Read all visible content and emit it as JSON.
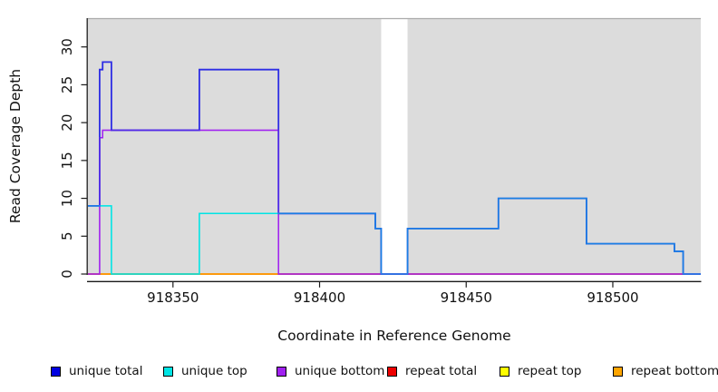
{
  "chart_data": {
    "type": "line",
    "subtype": "step-coverage",
    "title": "",
    "xlabel": "Coordinate in Reference Genome",
    "ylabel": "Read Coverage Depth",
    "xlim": [
      918321,
      918530
    ],
    "ylim": [
      0,
      33.8
    ],
    "x_ticks": [
      918350,
      918400,
      918450,
      918500
    ],
    "y_ticks": [
      0,
      5,
      10,
      15,
      20,
      25,
      30
    ],
    "grid": false,
    "legend_position": "bottom",
    "panel": {
      "background": "#DCDCDC",
      "top_border": "#ABABAB",
      "gap_fill": "#FFFFFF"
    },
    "gap_regions": [
      {
        "from": 918421,
        "to": 918430
      }
    ],
    "legend": [
      {
        "label": "unique total",
        "color": "#0000E0"
      },
      {
        "label": "unique top",
        "color": "#00E5E5"
      },
      {
        "label": "unique bottom",
        "color": "#A020F0"
      },
      {
        "label": "repeat total",
        "color": "#EE0000"
      },
      {
        "label": "repeat top",
        "color": "#FFFF00"
      },
      {
        "label": "repeat bottom",
        "color": "#FFA500"
      }
    ],
    "series": [
      {
        "name": "repeat top",
        "color": "#FFFF00",
        "steps": [
          {
            "from": 918321,
            "to": 918530,
            "value": 0
          }
        ]
      },
      {
        "name": "repeat total",
        "color": "#EE0000",
        "steps": [
          {
            "from": 918321,
            "to": 918530,
            "value": 0
          }
        ]
      },
      {
        "name": "repeat bottom",
        "color": "#FFA500",
        "steps": [
          {
            "from": 918321,
            "to": 918530,
            "value": 0
          }
        ]
      },
      {
        "name": "unique bottom",
        "color": "#A020F0",
        "steps": [
          {
            "from": 918321,
            "to": 918325,
            "value": 0
          },
          {
            "from": 918325,
            "to": 918326,
            "value": 18
          },
          {
            "from": 918326,
            "to": 918386,
            "value": 19
          },
          {
            "from": 918386,
            "to": 918530,
            "value": 0
          }
        ]
      },
      {
        "name": "unique top",
        "color": "#00E5E5",
        "steps": [
          {
            "from": 918321,
            "to": 918329,
            "value": 9
          },
          {
            "from": 918329,
            "to": 918359,
            "value": 0
          },
          {
            "from": 918359,
            "to": 918419,
            "value": 8
          },
          {
            "from": 918419,
            "to": 918421,
            "value": 6
          },
          {
            "from": 918421,
            "to": 918430,
            "value": 0
          },
          {
            "from": 918430,
            "to": 918461,
            "value": 6
          },
          {
            "from": 918461,
            "to": 918491,
            "value": 10
          },
          {
            "from": 918491,
            "to": 918521,
            "value": 4
          },
          {
            "from": 918521,
            "to": 918524,
            "value": 3
          },
          {
            "from": 918524,
            "to": 918530,
            "value": 0
          }
        ]
      },
      {
        "name": "unique total",
        "color": "#2E2EE4",
        "steps": [
          {
            "from": 918321,
            "to": 918325,
            "value": 9
          },
          {
            "from": 918325,
            "to": 918326,
            "value": 27
          },
          {
            "from": 918326,
            "to": 918329,
            "value": 28
          },
          {
            "from": 918329,
            "to": 918359,
            "value": 19
          },
          {
            "from": 918359,
            "to": 918386,
            "value": 27
          },
          {
            "from": 918386,
            "to": 918419,
            "value": 8
          },
          {
            "from": 918419,
            "to": 918421,
            "value": 6
          },
          {
            "from": 918421,
            "to": 918430,
            "value": 0
          },
          {
            "from": 918430,
            "to": 918461,
            "value": 6
          },
          {
            "from": 918461,
            "to": 918491,
            "value": 10
          },
          {
            "from": 918491,
            "to": 918521,
            "value": 4
          },
          {
            "from": 918521,
            "to": 918524,
            "value": 3
          },
          {
            "from": 918524,
            "to": 918530,
            "value": 0
          }
        ]
      }
    ]
  }
}
